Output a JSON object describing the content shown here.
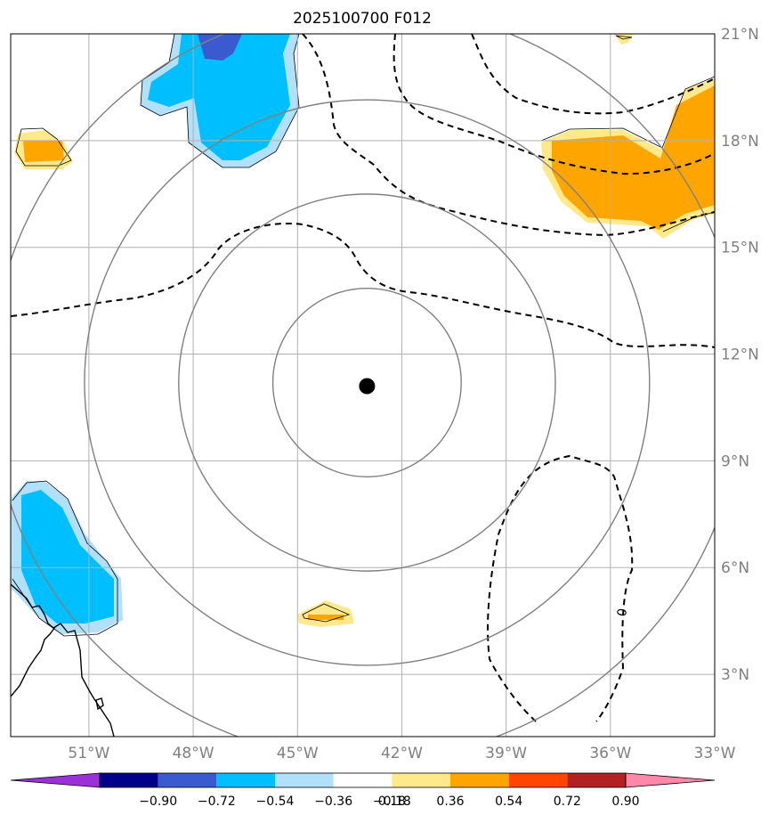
{
  "title": "2025100700 F012",
  "map": {
    "lon_range": [
      -53.25,
      -33
    ],
    "lat_range": [
      1.25,
      21
    ],
    "lon_ticks": [
      {
        "value": -51,
        "label": "51°W"
      },
      {
        "value": -48,
        "label": "48°W"
      },
      {
        "value": -45,
        "label": "45°W"
      },
      {
        "value": -42,
        "label": "42°W"
      },
      {
        "value": -39,
        "label": "39°W"
      },
      {
        "value": -36,
        "label": "36°W"
      },
      {
        "value": -33,
        "label": "33°W"
      }
    ],
    "lat_ticks": [
      {
        "value": 21,
        "label": "21°N"
      },
      {
        "value": 18,
        "label": "18°N"
      },
      {
        "value": 15,
        "label": "15°N"
      },
      {
        "value": 12,
        "label": "12°N"
      },
      {
        "value": 9,
        "label": "9°N"
      },
      {
        "value": 6,
        "label": "6°N"
      },
      {
        "value": 3,
        "label": "3°N"
      }
    ],
    "center": {
      "lon": -43.0,
      "lat": 11.1
    },
    "rings_deg": [
      2.75,
      5.5,
      8.25,
      11.0
    ],
    "contour_label": "0"
  },
  "colorbar": {
    "labels": [
      "−0.90",
      "−0.72",
      "−0.54",
      "−0.36",
      "−0.18",
      "0.18",
      "0.36",
      "0.54",
      "0.72",
      "0.90"
    ],
    "colors": [
      "#9b30d9",
      "#00008b",
      "#3a5bd0",
      "#00bfff",
      "#b0e0fa",
      "#ffffff",
      "#ffe98a",
      "#ffa500",
      "#ff4500",
      "#b22222",
      "#ff88aa"
    ]
  }
}
